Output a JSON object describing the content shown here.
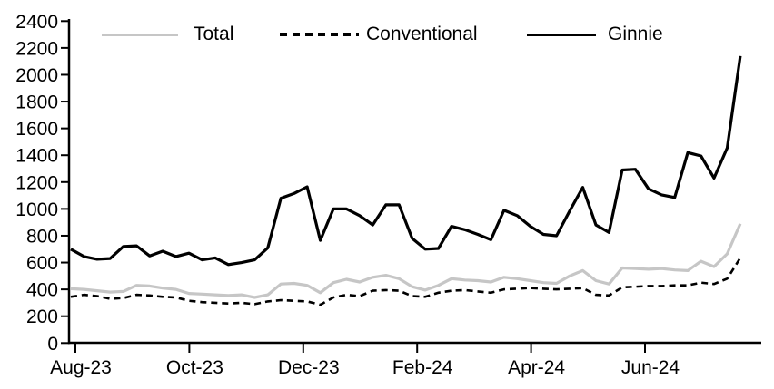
{
  "chart_data": {
    "type": "line",
    "title": "",
    "frequency": "weekly",
    "grid": false,
    "legend": {
      "position": "top",
      "entries": [
        "Total",
        "Conventional",
        "Ginnie"
      ]
    },
    "x_axis": {
      "label": "",
      "ticks": [
        {
          "label": "Aug-23",
          "month_offset": 0
        },
        {
          "label": "Oct-23",
          "month_offset": 2
        },
        {
          "label": "Dec-23",
          "month_offset": 4
        },
        {
          "label": "Feb-24",
          "month_offset": 6
        },
        {
          "label": "Apr-24",
          "month_offset": 8
        },
        {
          "label": "Jun-24",
          "month_offset": 10
        }
      ]
    },
    "y_axis": {
      "label": "",
      "min": 0,
      "max": 2400,
      "step": 200,
      "tick_labels": [
        "0",
        "200",
        "400",
        "600",
        "800",
        "1000",
        "1200",
        "1400",
        "1600",
        "1800",
        "2000",
        "2200",
        "2400"
      ]
    },
    "series": [
      {
        "name": "Total",
        "color": "#c6c6c6",
        "style": "solid",
        "values": [
          405,
          400,
          390,
          380,
          385,
          430,
          425,
          410,
          400,
          370,
          365,
          360,
          355,
          360,
          340,
          360,
          440,
          445,
          430,
          375,
          450,
          475,
          455,
          490,
          505,
          480,
          420,
          395,
          430,
          480,
          470,
          465,
          455,
          490,
          480,
          465,
          450,
          445,
          500,
          540,
          465,
          440,
          560,
          555,
          550,
          555,
          545,
          540,
          610,
          570,
          665,
          890
        ]
      },
      {
        "name": "Conventional",
        "color": "#000000",
        "style": "dashed",
        "values": [
          345,
          360,
          350,
          330,
          335,
          360,
          355,
          345,
          340,
          315,
          305,
          300,
          295,
          300,
          290,
          310,
          320,
          315,
          310,
          285,
          340,
          360,
          350,
          390,
          395,
          390,
          350,
          345,
          375,
          390,
          395,
          385,
          375,
          400,
          405,
          410,
          405,
          400,
          405,
          410,
          360,
          355,
          415,
          420,
          425,
          425,
          430,
          430,
          450,
          440,
          480,
          635
        ]
      },
      {
        "name": "Ginnie",
        "color": "#000000",
        "style": "solid",
        "values": [
          700,
          645,
          625,
          630,
          720,
          725,
          650,
          685,
          645,
          670,
          620,
          635,
          585,
          600,
          620,
          710,
          1080,
          1115,
          1165,
          765,
          1000,
          1000,
          950,
          880,
          1030,
          1030,
          780,
          700,
          705,
          870,
          845,
          810,
          770,
          990,
          950,
          870,
          810,
          800,
          985,
          1160,
          880,
          825,
          1290,
          1295,
          1150,
          1105,
          1085,
          1420,
          1395,
          1230,
          1455,
          2140
        ]
      }
    ]
  }
}
